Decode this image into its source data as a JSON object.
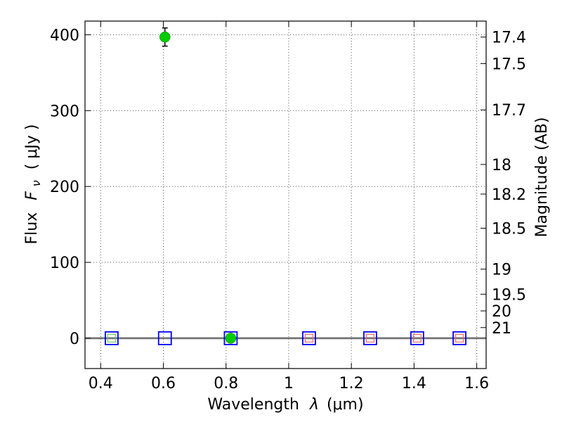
{
  "chart_data": {
    "type": "scatter",
    "xlabel": "Wavelength",
    "xlabel_symbol": "λ",
    "xlabel_unit": "(μm)",
    "ylabel": "Flux",
    "ylabel_symbol": "F",
    "ylabel_subscript": "ν",
    "ylabel_unit": "( μJy )",
    "y2label": "Magnitude (AB)",
    "xlim": [
      0.35,
      1.63
    ],
    "ylim": [
      -40,
      418
    ],
    "x_ticks": [
      0.4,
      0.6,
      0.8,
      1.0,
      1.2,
      1.4,
      1.6
    ],
    "x_tick_labels": [
      "0.4",
      "0.6",
      "0.8",
      "1",
      "1.2",
      "1.4",
      "1.6"
    ],
    "y_ticks": [
      0,
      100,
      200,
      300,
      400
    ],
    "y_tick_labels": [
      "0",
      "100",
      "200",
      "300",
      "400"
    ],
    "y2_ticks": [
      {
        "label": "17.4",
        "flux": 397
      },
      {
        "label": "17.5",
        "flux": 362
      },
      {
        "label": "17.7",
        "flux": 301
      },
      {
        "label": "18",
        "flux": 229
      },
      {
        "label": "18.2",
        "flux": 190
      },
      {
        "label": "18.5",
        "flux": 145
      },
      {
        "label": "19",
        "flux": 91
      },
      {
        "label": "19.5",
        "flux": 58
      },
      {
        "label": "20",
        "flux": 36
      },
      {
        "label": "21",
        "flux": 14
      }
    ],
    "grid": true,
    "series": [
      {
        "marker": "filled-circle",
        "color": "#00cc00",
        "points": [
          {
            "x": 0.605,
            "y": 397,
            "err": 12
          },
          {
            "x": 0.815,
            "y": 0,
            "err": 0
          }
        ]
      },
      {
        "marker": "open-square",
        "color": "#0000ff",
        "points": [
          {
            "x": 0.435,
            "y": 0
          },
          {
            "x": 0.605,
            "y": 0
          },
          {
            "x": 0.815,
            "y": 0
          },
          {
            "x": 1.065,
            "y": 0
          },
          {
            "x": 1.26,
            "y": 0
          },
          {
            "x": 1.41,
            "y": 0
          },
          {
            "x": 1.545,
            "y": 0
          }
        ]
      },
      {
        "marker": "small-open-square",
        "color": "#ff6666",
        "points": [
          {
            "x": 1.065,
            "y": 0
          },
          {
            "x": 1.26,
            "y": 0
          },
          {
            "x": 1.41,
            "y": 0
          },
          {
            "x": 1.545,
            "y": 0
          }
        ]
      },
      {
        "marker": "small-open-square",
        "color": "#66cc66",
        "points": [
          {
            "x": 0.435,
            "y": 0
          }
        ]
      }
    ]
  }
}
